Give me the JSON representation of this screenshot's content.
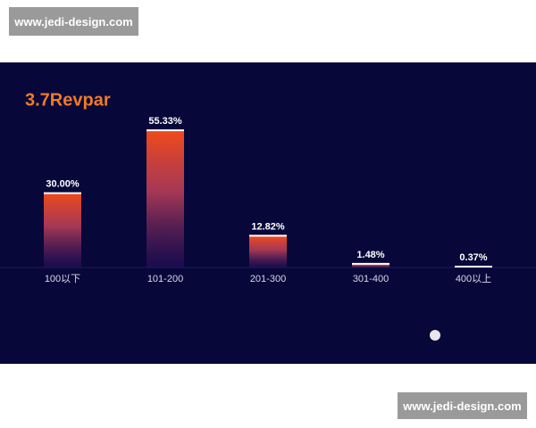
{
  "watermarks": [
    "www.jedi-design.com",
    "www.jedi-design.com"
  ],
  "chart_data": {
    "type": "bar",
    "title": "3.7Revpar",
    "categories": [
      "100以下",
      "101-200",
      "201-300",
      "301-400",
      "400以上"
    ],
    "values": [
      30.0,
      55.33,
      12.82,
      1.48,
      0.37
    ],
    "value_labels": [
      "30.00%",
      "55.33%",
      "12.82%",
      "1.48%",
      "0.37%"
    ],
    "color": "#f04a1a"
  }
}
